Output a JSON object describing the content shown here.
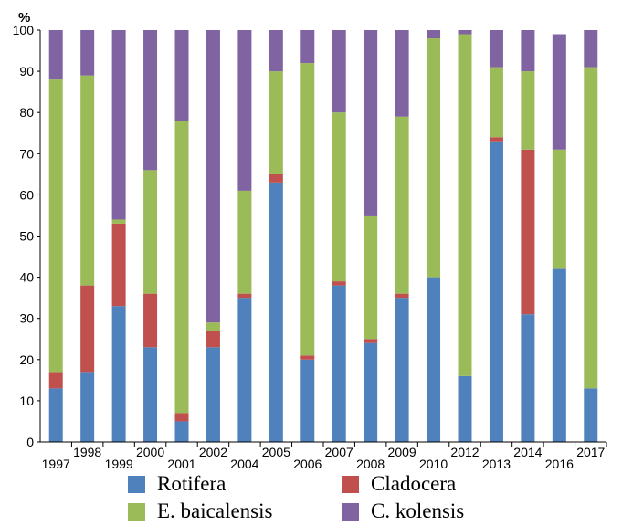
{
  "chart_data": {
    "type": "bar",
    "stacked": true,
    "ylabel": "%",
    "ylim": [
      0,
      100
    ],
    "yticks": [
      "0",
      "10",
      "20",
      "30",
      "40",
      "50",
      "60",
      "70",
      "80",
      "90",
      "100"
    ],
    "grid": false,
    "legend_position": "bottom",
    "categories": [
      "1997",
      "1998",
      "1999",
      "2000",
      "2001",
      "2002",
      "2004",
      "2005",
      "2006",
      "2007",
      "2008",
      "2009",
      "2010",
      "2012",
      "2013",
      "2014",
      "2016",
      "2017"
    ],
    "series": [
      {
        "name": "Rotifera",
        "color": "#4f81bd",
        "values": [
          13,
          17,
          33,
          23,
          5,
          23,
          35,
          63,
          20,
          38,
          24,
          35,
          40,
          16,
          73,
          31,
          42,
          13
        ]
      },
      {
        "name": "Cladocera",
        "color": "#c0504d",
        "values": [
          4,
          21,
          20,
          13,
          2,
          4,
          1,
          2,
          1,
          1,
          1,
          1,
          0,
          0,
          1,
          40,
          0,
          0
        ]
      },
      {
        "name": "E. baicalensis",
        "color": "#9bbb59",
        "values": [
          71,
          51,
          1,
          30,
          71,
          2,
          25,
          25,
          71,
          41,
          30,
          43,
          58,
          83,
          17,
          19,
          29,
          78
        ]
      },
      {
        "name": "C. kolensis",
        "color": "#8064a2",
        "values": [
          12,
          11,
          46,
          34,
          22,
          71,
          39,
          10,
          8,
          20,
          45,
          21,
          2,
          1,
          9,
          10,
          28,
          9
        ]
      }
    ]
  }
}
